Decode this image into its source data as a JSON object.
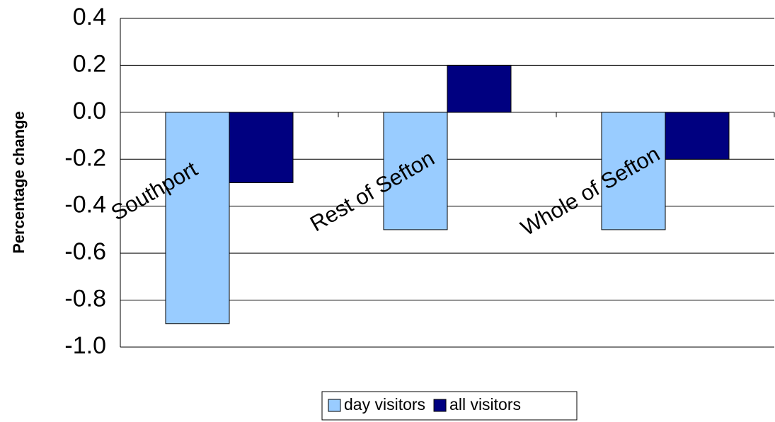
{
  "chart_data": {
    "type": "bar",
    "y_label": "Percentage change",
    "categories": [
      "Southport",
      "Rest of Sefton",
      "Whole of Sefton"
    ],
    "series": [
      {
        "name": "day visitors",
        "color": "#99ccff",
        "values": [
          -0.9,
          -0.5,
          -0.5
        ]
      },
      {
        "name": "all visitors",
        "color": "#000080",
        "values": [
          -0.3,
          0.2,
          -0.2
        ]
      }
    ],
    "ylim": [
      -1.0,
      0.4
    ],
    "yticks": [
      {
        "value": -1.0,
        "label": "-1.0"
      },
      -0.8,
      -0.6,
      -0.4,
      -0.2,
      {
        "value": 0,
        "label": "0.0"
      },
      0.2,
      0.4
    ],
    "grid": true,
    "legend": "bottom"
  }
}
